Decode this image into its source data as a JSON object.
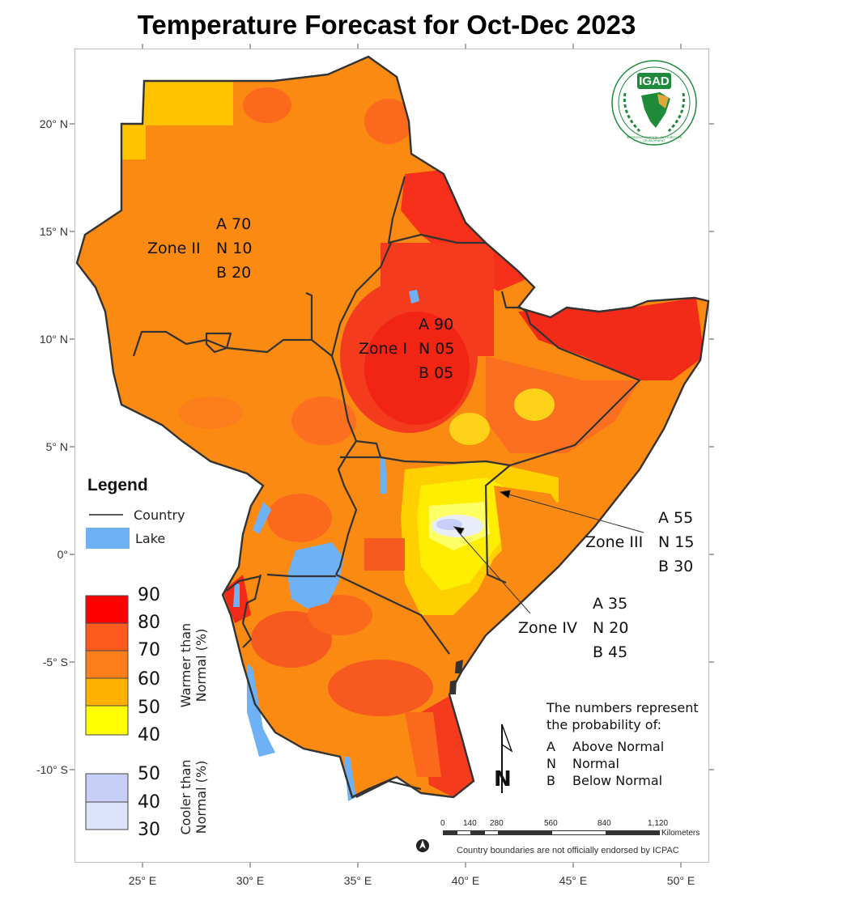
{
  "title": "Temperature Forecast for Oct-Dec 2023",
  "axes": {
    "lat_labels": [
      "20° N",
      "15° N",
      "10° N",
      "5° N",
      "0°",
      "-5° S",
      "-10° S"
    ],
    "lon_labels": [
      "25° E",
      "30° E",
      "35° E",
      "40° E",
      "45° E",
      "50° E"
    ]
  },
  "logo": {
    "text": "IGAD",
    "ring_text": "INTERGOVERNMENTAL AUTHORITY ON DEVELOPMENT",
    "colors": {
      "green": "#1e8a3a",
      "gold": "#e0a83c"
    }
  },
  "zones": [
    {
      "name": "Zone I",
      "a": "A 90",
      "n": "N 05",
      "b": "B 05"
    },
    {
      "name": "Zone II",
      "a": "A 70",
      "n": "N 10",
      "b": "B 20"
    },
    {
      "name": "Zone III",
      "a": "A 55",
      "n": "N 15",
      "b": "B 30"
    },
    {
      "name": "Zone IV",
      "a": "A 35",
      "n": "N 20",
      "b": "B 45"
    }
  ],
  "legend": {
    "title": "Legend",
    "country_label": "Country",
    "lake_label": "Lake",
    "warmer_label_1": "Warmer than",
    "warmer_label_2": "Normal (%)",
    "cooler_label_1": "Cooler than",
    "cooler_label_2": "Normal (%)",
    "warmer_values": [
      "90",
      "80",
      "70",
      "60",
      "50",
      "40"
    ],
    "cooler_values": [
      "50",
      "40",
      "30"
    ],
    "colors": {
      "w90": "#ff0000",
      "w80": "#ff5a1e",
      "w70": "#ff7e1c",
      "w60": "#ffb000",
      "w50": "#ffe600",
      "w40": "#ffff00",
      "c50": "#c7cff7",
      "c40": "#dde3fb",
      "lake": "#6eb1f5"
    }
  },
  "note": {
    "line1": "The numbers represent",
    "line2": "the probability of:",
    "items": [
      {
        "key": "A",
        "label": "Above Normal"
      },
      {
        "key": "N",
        "label": "Normal"
      },
      {
        "key": "B",
        "label": "Below Normal"
      }
    ]
  },
  "north_label": "N",
  "scale_bar": {
    "ticks": [
      "0",
      "140",
      "280",
      "560",
      "840",
      "1,120"
    ],
    "unit": "Kilometers"
  },
  "disclaimer": "Country boundaries are not officially endorsed by ICPAC"
}
